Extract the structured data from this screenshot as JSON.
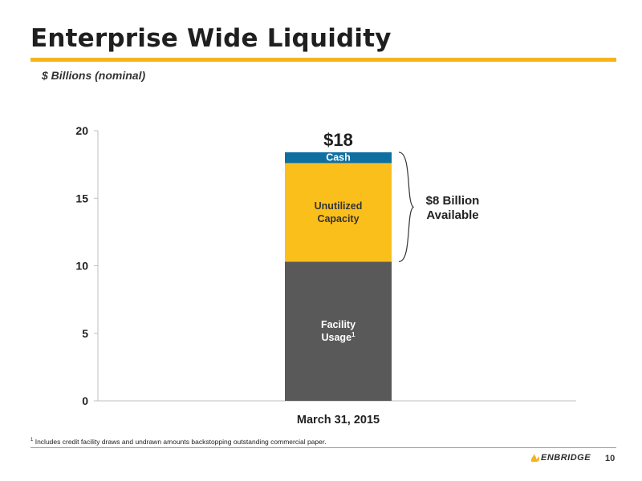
{
  "header": {
    "title": "Enterprise Wide Liquidity",
    "subtitle": "$ Billions (nominal)"
  },
  "chart_data": {
    "type": "bar",
    "stacked": true,
    "categories": [
      "March 31, 2015"
    ],
    "ylim": [
      0,
      20
    ],
    "yticks": [
      0,
      5,
      10,
      15,
      20
    ],
    "series": [
      {
        "name": "Facility Usage",
        "superscript": "1",
        "values": [
          10.3
        ],
        "color": "#595959",
        "label_color": "#ffffff"
      },
      {
        "name": "Unutilized Capacity",
        "values": [
          7.3
        ],
        "color": "#fbbf1c",
        "label_color": "#333333"
      },
      {
        "name": "Cash",
        "values": [
          0.8
        ],
        "color": "#0f6fa0",
        "label_color": "#ffffff"
      }
    ],
    "total_label": "$18",
    "annotation": "$8 Billion Available",
    "grid": false
  },
  "footer": {
    "footnote_marker": "1",
    "footnote": "Includes credit facility draws and undrawn amounts backstopping outstanding commercial paper.",
    "logo_text": "ENBRIDGE",
    "page_number": "10"
  },
  "colors": {
    "accent": "#f5b41b",
    "axis": "#bfbfbf"
  }
}
